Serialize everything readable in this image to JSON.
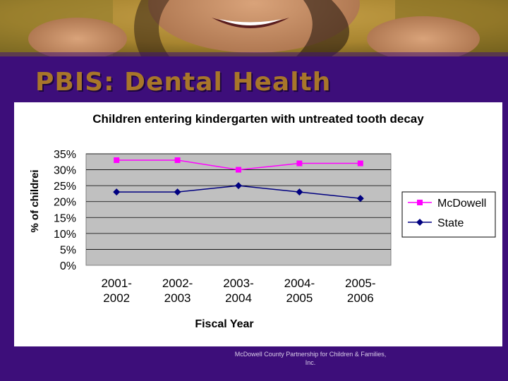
{
  "slide": {
    "title": "PBIS: Dental Health",
    "footer": "McDowell County Partnership for Children & Families, Inc."
  },
  "colors": {
    "background": "#3d0e7a",
    "title": "#a8762a",
    "plot_area": "#c0c0c0",
    "mcdowell": "#ff00ff",
    "state": "#000080"
  },
  "chart_data": {
    "type": "line",
    "title": "Children entering kindergarten with untreated tooth decay",
    "xlabel": "Fiscal Year",
    "ylabel": "% of childrei",
    "categories": [
      [
        "2001-",
        "2002"
      ],
      [
        "2002-",
        "2003"
      ],
      [
        "2003-",
        "2004"
      ],
      [
        "2004-",
        "2005"
      ],
      [
        "2005-",
        "2006"
      ]
    ],
    "yticks": [
      "0%",
      "5%",
      "10%",
      "15%",
      "20%",
      "25%",
      "30%",
      "35%"
    ],
    "ylim": [
      0,
      35
    ],
    "grid": true,
    "legend": "right",
    "series": [
      {
        "name": "McDowell",
        "values": [
          33,
          33,
          30,
          32,
          32
        ],
        "marker": "square"
      },
      {
        "name": "State",
        "values": [
          23,
          23,
          25,
          23,
          21
        ],
        "marker": "diamond"
      }
    ]
  }
}
